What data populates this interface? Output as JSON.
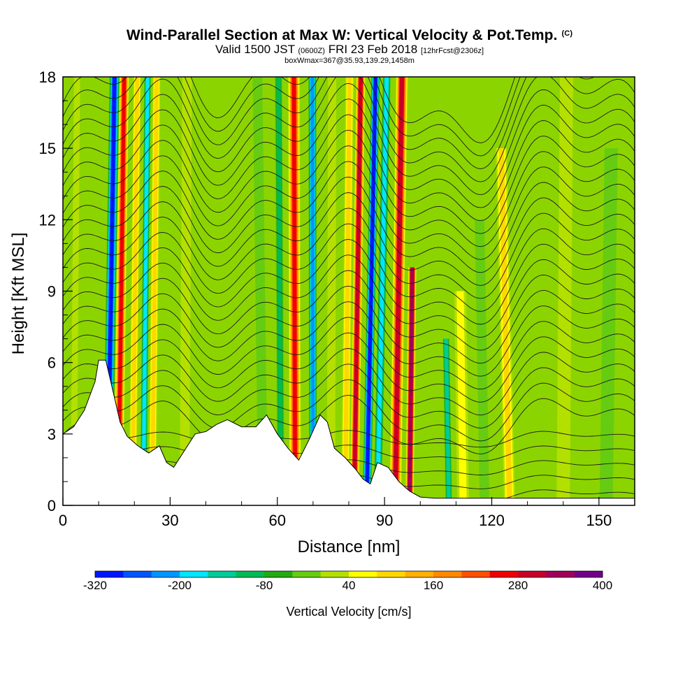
{
  "header": {
    "title": "Wind-Parallel Section at Max W: Vertical Velocity & Pot.Temp.",
    "copyright": "(C)",
    "valid_main": "Valid 1500 JST",
    "valid_z": "(0600Z)",
    "valid_date": "FRI 23 Feb 2018",
    "forecast": "[12hrFcst@2306z]",
    "boxwmax": "boxWmax=367@35.93,139.29,1458m"
  },
  "chart_data": {
    "type": "heatmap",
    "xlabel": "Distance [nm]",
    "ylabel": "Height [Kft MSL]",
    "xlim": [
      0,
      160
    ],
    "ylim": [
      0,
      18
    ],
    "x_ticks": [
      "0",
      "30",
      "60",
      "90",
      "120",
      "150"
    ],
    "y_ticks": [
      "0",
      "3",
      "6",
      "9",
      "12",
      "15",
      "18"
    ],
    "colorbar": {
      "label": "Vertical Velocity [cm/s]",
      "tick_labels": [
        "-320",
        "-200",
        "-80",
        "40",
        "160",
        "280",
        "400"
      ],
      "levels": [
        -320,
        -280,
        -240,
        -200,
        -160,
        -120,
        -80,
        -40,
        0,
        40,
        80,
        120,
        160,
        200,
        240,
        280,
        320,
        360,
        400
      ],
      "colors": [
        "#0016ff",
        "#0055ff",
        "#0096ff",
        "#00e6ff",
        "#00cc99",
        "#00bb55",
        "#22aa11",
        "#66cc11",
        "#b4e000",
        "#ffff00",
        "#ffd700",
        "#ffb000",
        "#ff8a00",
        "#ff5000",
        "#f00000",
        "#c80028",
        "#a0005a",
        "#73008a"
      ]
    },
    "vertical_velocity_bands": [
      {
        "x": 3,
        "w": 40,
        "width": 1.0,
        "top": 18
      },
      {
        "x": 12.5,
        "w": -330,
        "width": 2.2,
        "top": 18
      },
      {
        "x": 15.5,
        "w": 260,
        "width": 2.0,
        "top": 18
      },
      {
        "x": 19.5,
        "w": 130,
        "width": 1.4,
        "top": 18
      },
      {
        "x": 22.5,
        "w": -200,
        "width": 1.2,
        "top": 18
      },
      {
        "x": 25,
        "w": 120,
        "width": 1.4,
        "top": 18
      },
      {
        "x": 34,
        "w": 40,
        "width": 2.0,
        "top": 18
      },
      {
        "x": 56,
        "w": -30,
        "width": 2.0,
        "top": 18
      },
      {
        "x": 61,
        "w": -120,
        "width": 1.4,
        "top": 18
      },
      {
        "x": 65,
        "w": 290,
        "width": 2.6,
        "top": 18
      },
      {
        "x": 70,
        "w": -240,
        "width": 1.6,
        "top": 18
      },
      {
        "x": 75,
        "w": 30,
        "width": 1.6,
        "top": 18
      },
      {
        "x": 79,
        "w": 100,
        "width": 1.6,
        "top": 18
      },
      {
        "x": 81.5,
        "w": 300,
        "width": 1.8,
        "top": 18
      },
      {
        "x": 85,
        "w": -300,
        "width": 1.8,
        "top": 18
      },
      {
        "x": 88,
        "w": -190,
        "width": 1.6,
        "top": 18
      },
      {
        "x": 93,
        "w": 330,
        "width": 2.6,
        "top": 18
      },
      {
        "x": 97,
        "w": 360,
        "width": 1.6,
        "top": 10
      },
      {
        "x": 108,
        "w": -140,
        "width": 1.2,
        "top": 7
      },
      {
        "x": 112,
        "w": 90,
        "width": 2.6,
        "top": 9
      },
      {
        "x": 118,
        "w": -20,
        "width": 2.0,
        "top": 12
      },
      {
        "x": 125,
        "w": 120,
        "width": 2.4,
        "top": 15
      },
      {
        "x": 140,
        "w": 50,
        "width": 3.0,
        "top": 18
      },
      {
        "x": 152,
        "w": -40,
        "width": 3.0,
        "top": 15
      }
    ],
    "terrain_height_kft": [
      [
        0,
        3.0
      ],
      [
        3,
        3.3
      ],
      [
        6,
        4.0
      ],
      [
        9,
        5.2
      ],
      [
        10,
        6.1
      ],
      [
        12,
        6.1
      ],
      [
        14,
        4.8
      ],
      [
        16,
        3.5
      ],
      [
        18,
        2.9
      ],
      [
        21,
        2.5
      ],
      [
        24,
        2.2
      ],
      [
        27,
        2.5
      ],
      [
        29,
        1.8
      ],
      [
        31,
        1.6
      ],
      [
        34,
        2.3
      ],
      [
        37,
        3.0
      ],
      [
        40,
        3.1
      ],
      [
        43,
        3.4
      ],
      [
        46,
        3.6
      ],
      [
        50,
        3.3
      ],
      [
        54,
        3.3
      ],
      [
        57,
        3.8
      ],
      [
        60,
        3.0
      ],
      [
        63,
        2.4
      ],
      [
        66,
        1.9
      ],
      [
        69,
        2.8
      ],
      [
        72,
        3.8
      ],
      [
        74,
        3.5
      ],
      [
        76,
        2.4
      ],
      [
        79,
        2.0
      ],
      [
        82,
        1.5
      ],
      [
        84,
        1.1
      ],
      [
        86,
        0.9
      ],
      [
        88,
        1.8
      ],
      [
        91,
        1.6
      ],
      [
        94,
        1.0
      ],
      [
        97,
        0.6
      ],
      [
        100,
        0.35
      ],
      [
        104,
        0.3
      ],
      [
        160,
        0.3
      ]
    ]
  }
}
